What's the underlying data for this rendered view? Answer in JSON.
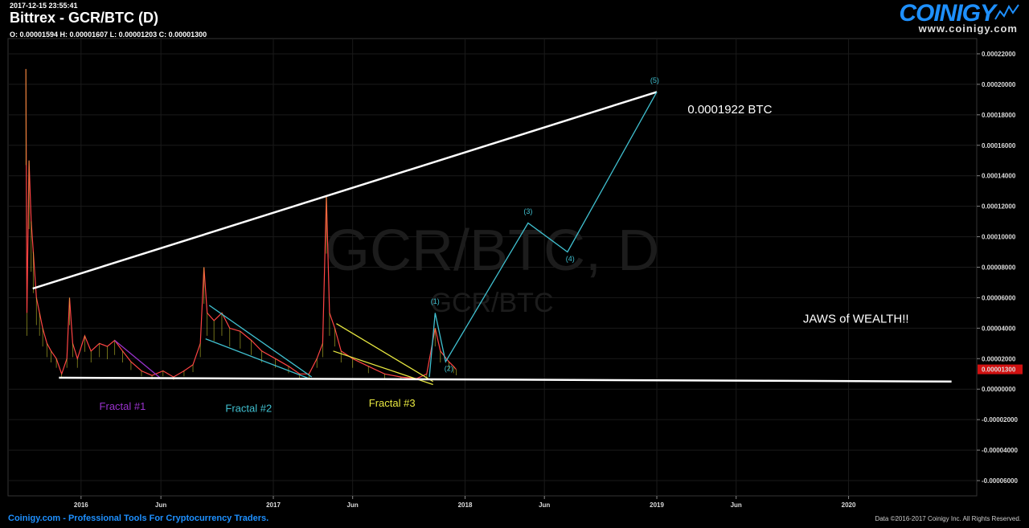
{
  "header": {
    "timestamp": "2017-12-15 23:55:41",
    "title": "Bittrex - GCR/BTC (D)",
    "ohlc": "O: 0.00001594 H: 0.00001607 L: 0.00001203 C: 0.00001300"
  },
  "logo": {
    "brand": "COINIGY",
    "url": "www.coinigy.com"
  },
  "watermark": {
    "main": "GCR/BTC, D",
    "sub": "GCR/BTC"
  },
  "footer": {
    "left": "Coinigy.com - Professional Tools For Cryptocurrency Traders.",
    "right": "Data ©2016-2017 Coinigy Inc. All Rights Reserved."
  },
  "colors": {
    "background": "#000000",
    "price_candles": "#ff4444",
    "trend_line": "#ffffff",
    "fractal1": "#9932cc",
    "fractal2": "#40c0d0",
    "fractal3": "#e8e840",
    "wave": "#40c0d0",
    "last_price_tag": "#d11111"
  },
  "chart_data": {
    "type": "line",
    "ylim": [
      -7e-05,
      0.00023
    ],
    "y_ticks": [
      "0.00022000",
      "0.00020000",
      "0.00018000",
      "0.00016000",
      "0.00014000",
      "0.00012000",
      "0.00010000",
      "0.00008000",
      "0.00006000",
      "0.00004000",
      "0.00002000",
      "0.00000000",
      "-0.00002000",
      "-0.00004000",
      "-0.00006000"
    ],
    "y_tick_values": [
      0.00022,
      0.0002,
      0.00018,
      0.00016,
      0.00014,
      0.00012,
      0.0001,
      8e-05,
      6e-05,
      4e-05,
      2e-05,
      0,
      -2e-05,
      -4e-05,
      -6e-05
    ],
    "x_range": [
      "2015-08-15",
      "2020-09-01"
    ],
    "x_ticks": [
      {
        "label": "2016",
        "date": "2016-01-01"
      },
      {
        "label": "Jun",
        "date": "2016-06-01"
      },
      {
        "label": "2017",
        "date": "2017-01-01"
      },
      {
        "label": "Jun",
        "date": "2017-06-01"
      },
      {
        "label": "2018",
        "date": "2018-01-01"
      },
      {
        "label": "Jun",
        "date": "2018-06-01"
      },
      {
        "label": "2019",
        "date": "2019-01-01"
      },
      {
        "label": "Jun",
        "date": "2019-06-01"
      },
      {
        "label": "2020",
        "date": "2020-01-01"
      }
    ],
    "last_price": {
      "value": 1.3e-05,
      "label": "0.00001300"
    },
    "price_series": [
      [
        "2015-09-18",
        0.00021
      ],
      [
        "2015-09-20",
        5e-05
      ],
      [
        "2015-09-24",
        0.00015
      ],
      [
        "2015-09-28",
        0.00011
      ],
      [
        "2015-10-02",
        9e-05
      ],
      [
        "2015-10-08",
        6e-05
      ],
      [
        "2015-10-14",
        5e-05
      ],
      [
        "2015-10-20",
        4e-05
      ],
      [
        "2015-10-28",
        3e-05
      ],
      [
        "2015-11-05",
        2.5e-05
      ],
      [
        "2015-11-15",
        2e-05
      ],
      [
        "2015-11-25",
        1e-05
      ],
      [
        "2015-12-05",
        2e-05
      ],
      [
        "2015-12-10",
        6e-05
      ],
      [
        "2015-12-16",
        3e-05
      ],
      [
        "2015-12-25",
        2e-05
      ],
      [
        "2016-01-08",
        3.5e-05
      ],
      [
        "2016-01-20",
        2.5e-05
      ],
      [
        "2016-02-05",
        3e-05
      ],
      [
        "2016-02-20",
        2.8e-05
      ],
      [
        "2016-03-05",
        3.2e-05
      ],
      [
        "2016-03-20",
        2.5e-05
      ],
      [
        "2016-04-05",
        1.8e-05
      ],
      [
        "2016-04-25",
        1.2e-05
      ],
      [
        "2016-05-15",
        9e-06
      ],
      [
        "2016-06-05",
        1.2e-05
      ],
      [
        "2016-06-25",
        8e-06
      ],
      [
        "2016-07-15",
        1.2e-05
      ],
      [
        "2016-08-01",
        1.6e-05
      ],
      [
        "2016-08-15",
        3e-05
      ],
      [
        "2016-08-22",
        8e-05
      ],
      [
        "2016-08-28",
        5e-05
      ],
      [
        "2016-09-10",
        4.5e-05
      ],
      [
        "2016-09-25",
        5e-05
      ],
      [
        "2016-10-10",
        4e-05
      ],
      [
        "2016-10-30",
        3.8e-05
      ],
      [
        "2016-11-20",
        3.2e-05
      ],
      [
        "2016-12-10",
        2.5e-05
      ],
      [
        "2017-01-05",
        2e-05
      ],
      [
        "2017-01-30",
        1.5e-05
      ],
      [
        "2017-02-20",
        1e-05
      ],
      [
        "2017-03-10",
        1e-05
      ],
      [
        "2017-03-25",
        2e-05
      ],
      [
        "2017-04-05",
        3e-05
      ],
      [
        "2017-04-12",
        0.000127
      ],
      [
        "2017-04-18",
        5e-05
      ],
      [
        "2017-04-28",
        4e-05
      ],
      [
        "2017-05-10",
        2.5e-05
      ],
      [
        "2017-06-01",
        2e-05
      ],
      [
        "2017-07-01",
        1.5e-05
      ],
      [
        "2017-08-01",
        1e-05
      ],
      [
        "2017-09-01",
        8e-06
      ],
      [
        "2017-10-01",
        7e-06
      ],
      [
        "2017-10-20",
        1e-05
      ],
      [
        "2017-11-05",
        4e-05
      ],
      [
        "2017-11-15",
        2.5e-05
      ],
      [
        "2017-12-01",
        1.8e-05
      ],
      [
        "2017-12-10",
        1.5e-05
      ],
      [
        "2017-12-15",
        1.3e-05
      ]
    ],
    "trend_lines": [
      {
        "color": "#ffffff",
        "points": [
          [
            "2015-10-01",
            6.6e-05
          ],
          [
            "2019-01-01",
            0.000195
          ]
        ]
      },
      {
        "color": "#ffffff",
        "points": [
          [
            "2015-11-20",
            7.5e-06
          ],
          [
            "2020-07-15",
            5e-06
          ]
        ]
      }
    ],
    "fractal_lines": [
      {
        "name": "fractal1",
        "color": "#9932cc",
        "points": [
          [
            "2016-03-05",
            3.2e-05
          ],
          [
            "2016-06-01",
            7e-06
          ]
        ]
      },
      {
        "name": "fractal2",
        "color": "#40c0d0",
        "points": [
          [
            "2016-08-25",
            3.3e-05
          ],
          [
            "2017-03-10",
            7e-06
          ]
        ]
      },
      {
        "name": "fractal2b",
        "color": "#40c0d0",
        "points": [
          [
            "2016-09-01",
            5.5e-05
          ],
          [
            "2017-03-15",
            8e-06
          ]
        ]
      },
      {
        "name": "fractal3",
        "color": "#e8e840",
        "points": [
          [
            "2017-04-25",
            2.5e-05
          ],
          [
            "2017-11-01",
            3e-06
          ]
        ]
      },
      {
        "name": "fractal3b",
        "color": "#e8e840",
        "points": [
          [
            "2017-05-01",
            4.3e-05
          ],
          [
            "2017-11-01",
            5e-06
          ]
        ]
      }
    ],
    "wave_path": [
      [
        "2017-10-25",
        8e-06
      ],
      [
        "2017-11-05",
        5e-05
      ],
      [
        "2017-11-25",
        1.8e-05
      ],
      [
        "2018-05-01",
        0.000109
      ],
      [
        "2018-07-15",
        9e-05
      ],
      [
        "2019-01-01",
        0.000195
      ]
    ],
    "wave_labels": [
      {
        "label": "(1)",
        "date": "2017-11-05",
        "value": 5.6e-05
      },
      {
        "label": "(2)",
        "date": "2017-12-01",
        "value": 1.2e-05
      },
      {
        "label": "(3)",
        "date": "2018-05-01",
        "value": 0.000115
      },
      {
        "label": "(4)",
        "date": "2018-07-20",
        "value": 8.4e-05
      },
      {
        "label": "(5)",
        "date": "2018-12-28",
        "value": 0.000201
      }
    ],
    "annotations": [
      {
        "text": "Fractal #1",
        "color": "#9932cc",
        "date": "2016-03-20",
        "value": -1.35e-05
      },
      {
        "text": "Fractal #2",
        "color": "#40c0d0",
        "date": "2016-11-15",
        "value": -1.5e-05
      },
      {
        "text": "Fractal #3",
        "color": "#e8e840",
        "date": "2017-08-15",
        "value": -1.15e-05
      },
      {
        "text": "0.0001922 BTC",
        "color": "#ffffff",
        "date": "2019-05-20",
        "value": 0.000181
      },
      {
        "text": "JAWS of WEALTH!!",
        "color": "#ffffff",
        "date": "2020-01-15",
        "value": 4.35e-05
      }
    ]
  }
}
